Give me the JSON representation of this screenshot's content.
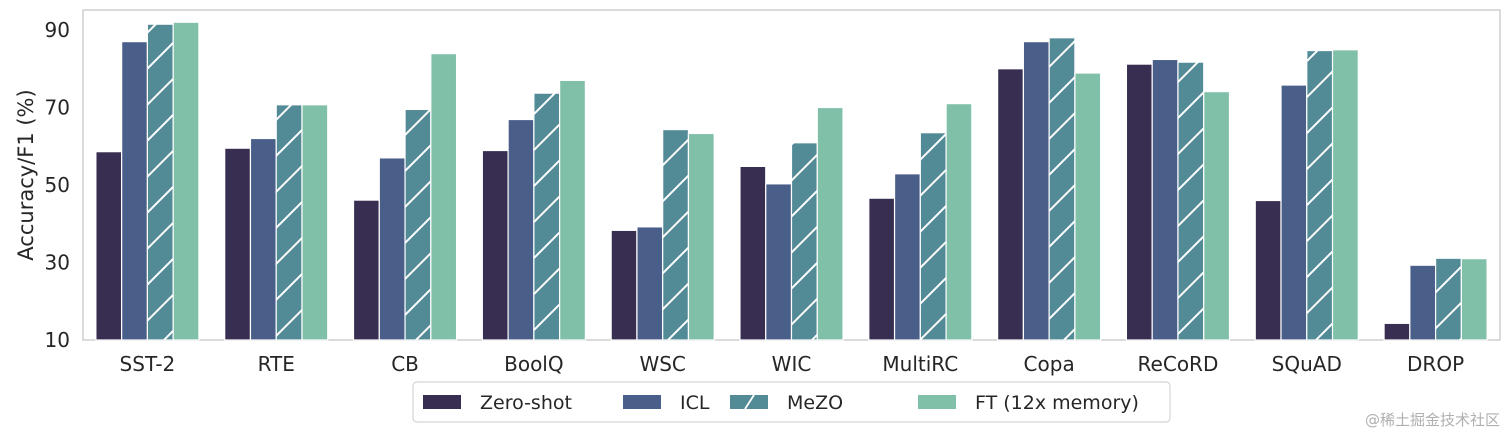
{
  "chart_data": {
    "type": "bar",
    "title": "",
    "xlabel": "",
    "ylabel": "Accuracy/F1 (%)",
    "ylim": [
      10,
      95
    ],
    "yticks": [
      10,
      30,
      50,
      70,
      90
    ],
    "grid": false,
    "legend_position": "bottom-center",
    "categories": [
      "SST-2",
      "RTE",
      "CB",
      "BoolQ",
      "WSC",
      "WIC",
      "MultiRC",
      "Copa",
      "ReCoRD",
      "SQuAD",
      "DROP"
    ],
    "series": [
      {
        "name": "Zero-shot",
        "color": "#372e51",
        "hatch": false,
        "values": [
          58.6,
          59.5,
          46.1,
          58.9,
          38.3,
          54.8,
          46.6,
          80.0,
          81.2,
          46.0,
          14.3
        ]
      },
      {
        "name": "ICL",
        "color": "#4a5e8a",
        "hatch": false,
        "values": [
          87.0,
          62.0,
          57.0,
          66.9,
          39.2,
          50.3,
          52.9,
          87.0,
          82.4,
          75.8,
          29.3
        ]
      },
      {
        "name": "MeZO",
        "color": "#528a96",
        "hatch": true,
        "values": [
          91.5,
          70.7,
          69.5,
          73.7,
          64.3,
          60.9,
          63.5,
          88.0,
          81.7,
          84.7,
          31.1
        ]
      },
      {
        "name": "FT (12x memory)",
        "color": "#80c0a8",
        "hatch": false,
        "values": [
          92.0,
          70.7,
          83.9,
          77.0,
          63.3,
          70.0,
          71.0,
          78.9,
          74.1,
          84.9,
          31.0
        ]
      }
    ]
  },
  "watermark": "@稀土掘金技术社区"
}
